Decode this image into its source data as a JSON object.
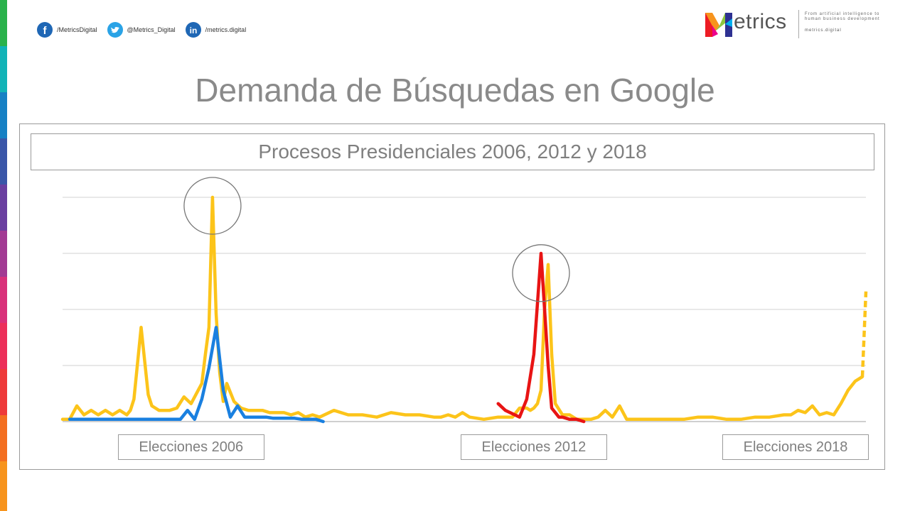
{
  "social": {
    "facebook": "/MetricsDigital",
    "twitter": "@Metrics_Digital",
    "linkedin": "/metrics.digital"
  },
  "logo": {
    "word": "etrics",
    "tagline": "From artificial intelligence to human business development",
    "url": "metrics.digital"
  },
  "main_title": "Demanda de Búsquedas en Google",
  "colors": {
    "blue": "#1a80e0",
    "yellow": "#fcc41a",
    "red": "#e81414",
    "grid": "#d9d9d9"
  },
  "chart_data": {
    "type": "line",
    "title": "Procesos Presidenciales 2006, 2012 y 2018",
    "grid": true,
    "ylim": [
      0,
      100
    ],
    "xlim": [
      0,
      225
    ],
    "categories": [
      {
        "label": "Elecciones 2006",
        "x": 36
      },
      {
        "label": "Elecciones 2012",
        "x": 132
      },
      {
        "label": "Elecciones 2018",
        "x": 207
      }
    ],
    "series": [
      {
        "color": "yellow",
        "x": [
          0,
          2,
          4,
          6,
          8,
          10,
          12,
          14,
          16,
          18,
          19,
          20,
          22,
          24,
          25,
          26,
          27,
          28,
          30,
          32,
          34,
          36,
          38,
          39,
          40,
          41,
          42,
          43,
          44,
          45,
          46,
          48,
          50,
          52,
          54,
          56,
          58,
          60,
          62,
          64,
          66,
          68,
          70,
          72,
          76,
          80,
          84,
          88,
          92,
          96,
          100,
          104,
          106,
          108,
          110,
          112,
          114,
          118,
          122,
          124,
          126,
          128,
          130,
          131,
          132,
          133,
          134,
          135,
          136,
          137,
          138,
          140,
          142,
          144,
          146,
          148,
          150,
          152,
          154,
          156,
          158,
          162,
          166,
          170,
          174,
          178,
          182,
          186,
          190,
          194,
          198,
          202,
          204,
          206,
          208,
          210,
          212,
          214,
          216,
          218,
          220,
          222,
          224
        ],
        "y": [
          1,
          1,
          7,
          3,
          5,
          3,
          5,
          3,
          5,
          3,
          5,
          10,
          42,
          12,
          7,
          6,
          5,
          5,
          5,
          6,
          11,
          8,
          14,
          17,
          30,
          42,
          100,
          48,
          22,
          9,
          17,
          9,
          6,
          5,
          5,
          5,
          4,
          4,
          4,
          3,
          4,
          2,
          3,
          2,
          5,
          3,
          3,
          2,
          4,
          3,
          3,
          2,
          2,
          3,
          2,
          4,
          2,
          1,
          2,
          2,
          2,
          6,
          6,
          5,
          6,
          8,
          14,
          50,
          70,
          30,
          8,
          3,
          3,
          1,
          1,
          1,
          2,
          5,
          2,
          7,
          1,
          1,
          1,
          1,
          1,
          2,
          2,
          1,
          1,
          2,
          2,
          3,
          3,
          5,
          4,
          7,
          3,
          4,
          3,
          8,
          14,
          18,
          20
        ]
      },
      {
        "color": "blue",
        "x": [
          2,
          10,
          20,
          25,
          27,
          29,
          31,
          33,
          35,
          37,
          39,
          41,
          43,
          45,
          47,
          49,
          51,
          53,
          55,
          57,
          59,
          61,
          63,
          65,
          67,
          69,
          71,
          73
        ],
        "y": [
          1,
          1,
          1,
          1,
          1,
          1,
          1,
          1,
          5,
          1,
          10,
          24,
          42,
          14,
          2,
          7,
          2,
          2,
          2,
          2,
          1.5,
          1.5,
          1.5,
          1.5,
          1,
          1,
          1,
          0
        ]
      },
      {
        "color": "red",
        "x": [
          122,
          124,
          128,
          130,
          132,
          134,
          136,
          137,
          138,
          139,
          140,
          142,
          144,
          146
        ],
        "y": [
          8,
          5,
          2,
          10,
          30,
          75,
          25,
          6,
          4,
          2,
          2,
          1,
          1,
          0
        ]
      },
      {
        "color": "yellow",
        "dashed": true,
        "x": [
          224,
          225
        ],
        "y": [
          20,
          58
        ]
      }
    ],
    "annotations": [
      {
        "type": "circle",
        "x": 42,
        "y": 100
      },
      {
        "type": "circle",
        "x": 134,
        "y": 70
      }
    ]
  }
}
